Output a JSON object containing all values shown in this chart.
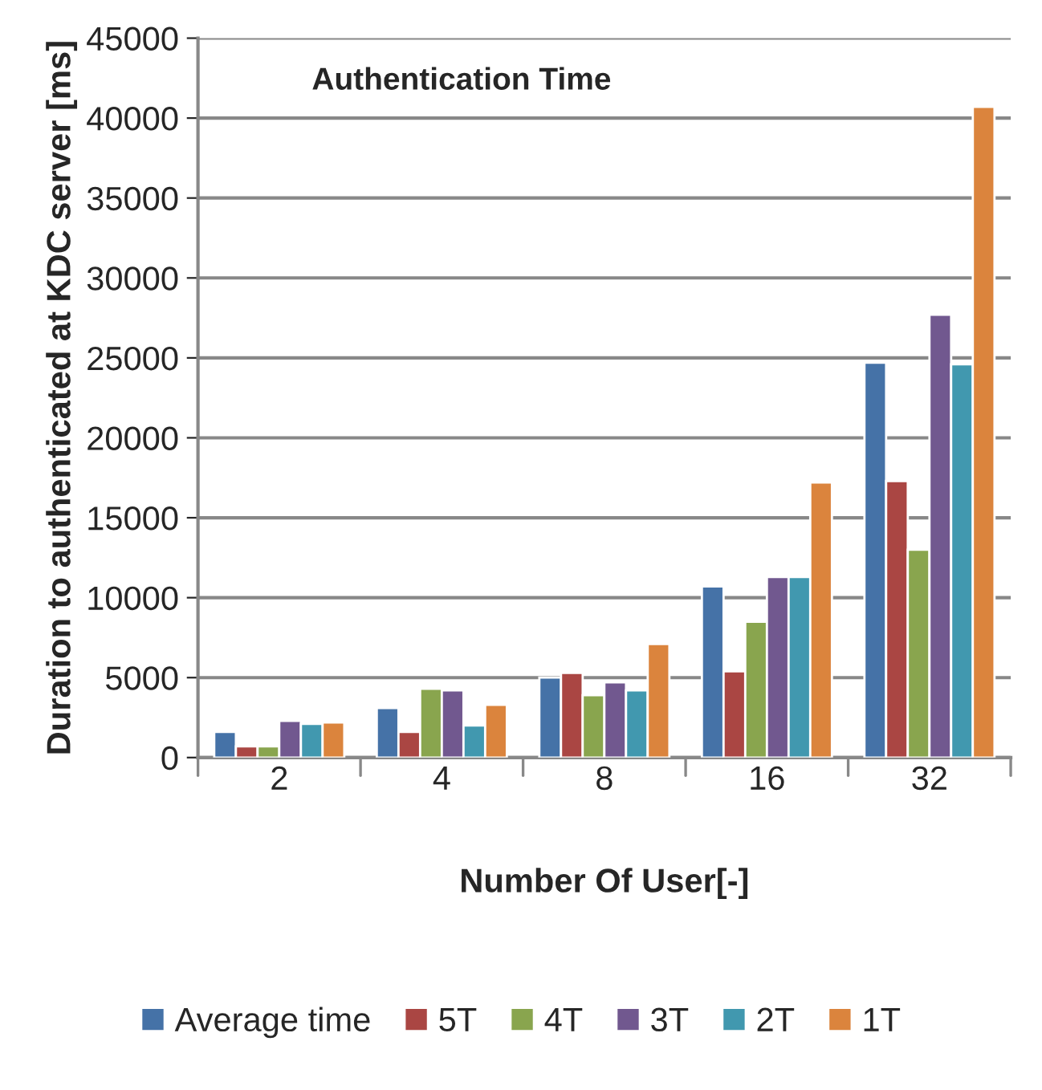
{
  "chart_data": {
    "type": "bar",
    "title": "Authentication Time",
    "xlabel": "Number Of User[-]",
    "ylabel": "Duration to authenticated at KDC server [ms]",
    "categories": [
      "2",
      "4",
      "8",
      "16",
      "32"
    ],
    "series": [
      {
        "name": "Average time",
        "color": "#4572a7",
        "values": [
          1600,
          3100,
          5000,
          10700,
          24700
        ]
      },
      {
        "name": "5T",
        "color": "#aa4643",
        "values": [
          700,
          1600,
          5300,
          5400,
          17300
        ]
      },
      {
        "name": "4T",
        "color": "#89a54e",
        "values": [
          700,
          4300,
          3900,
          8500,
          13000
        ]
      },
      {
        "name": "3T",
        "color": "#71588f",
        "values": [
          2300,
          4200,
          4700,
          11300,
          27700
        ]
      },
      {
        "name": "2T",
        "color": "#4198af",
        "values": [
          2100,
          2000,
          4200,
          11300,
          24600
        ]
      },
      {
        "name": "1T",
        "color": "#db843d",
        "values": [
          2200,
          3300,
          7100,
          17200,
          40700
        ]
      }
    ],
    "ylim": [
      0,
      45000
    ],
    "yticks": [
      0,
      5000,
      10000,
      15000,
      20000,
      25000,
      30000,
      35000,
      40000,
      45000
    ],
    "grid": "y",
    "legend": "bottom"
  }
}
